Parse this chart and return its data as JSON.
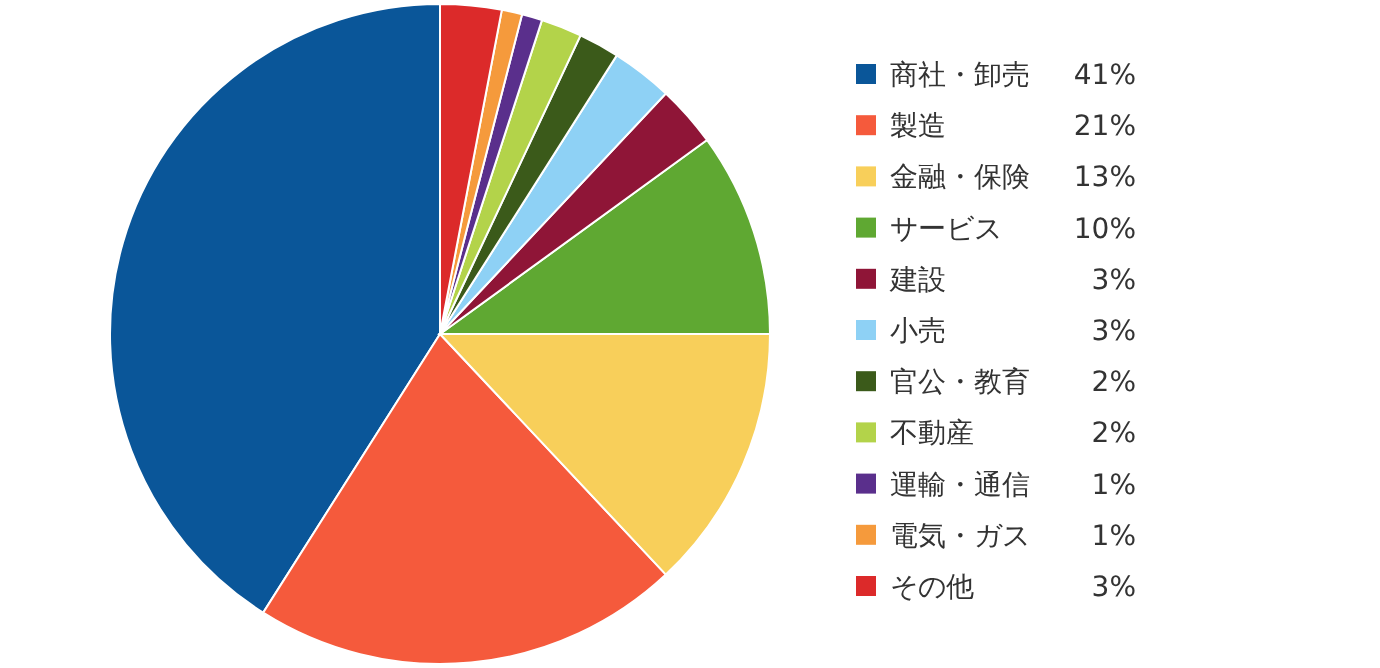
{
  "chart_data": {
    "type": "pie",
    "categories": [
      "商社・卸売",
      "製造",
      "金融・保険",
      "サービス",
      "建設",
      "小売",
      "官公・教育",
      "不動産",
      "運輸・通信",
      "電気・ガス",
      "その他"
    ],
    "values": [
      41,
      21,
      13,
      10,
      3,
      3,
      2,
      2,
      1,
      1,
      3
    ],
    "colors": [
      "#0a5699",
      "#f55a3c",
      "#f8cf5a",
      "#5fa832",
      "#8f1537",
      "#8ed1f5",
      "#3b5a1a",
      "#b3d34a",
      "#5a2f8c",
      "#f59a3c",
      "#dc2a2a"
    ],
    "value_labels": [
      "41%",
      "21%",
      "13%",
      "10%",
      "3%",
      "3%",
      "2%",
      "2%",
      "1%",
      "1%",
      "3%"
    ],
    "legend": "right"
  }
}
